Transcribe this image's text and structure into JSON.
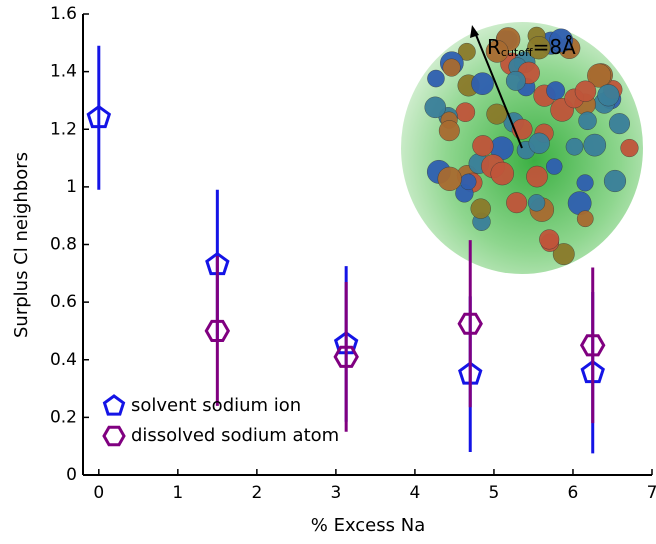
{
  "chart_data": {
    "type": "scatter",
    "xlabel": "% Excess Na",
    "ylabel": "Surplus Cl neighbors",
    "xlim": [
      -0.2,
      7
    ],
    "ylim": [
      0,
      1.6
    ],
    "xticks": [
      0,
      1,
      2,
      3,
      4,
      5,
      6,
      7
    ],
    "yticks": [
      0,
      0.2,
      0.4,
      0.6,
      0.8,
      1,
      1.2,
      1.4,
      1.6
    ],
    "legend": "lower left",
    "annotation": {
      "base": "R",
      "sub": "cutoff",
      "rest": "=8Å"
    },
    "series": [
      {
        "name": "solvent sodium ion",
        "color": "#1414e6",
        "marker": "pentagon",
        "x": [
          0,
          1.5,
          3.13,
          4.7,
          6.25
        ],
        "values": [
          1.24,
          0.73,
          0.455,
          0.35,
          0.355
        ],
        "errors": [
          0.25,
          0.26,
          0.27,
          0.27,
          0.28
        ]
      },
      {
        "name": "dissolved sodium atom",
        "color": "#800080",
        "marker": "hexagon",
        "x": [
          1.5,
          3.13,
          4.7,
          6.25
        ],
        "values": [
          0.5,
          0.41,
          0.525,
          0.45
        ],
        "errors": [
          0.26,
          0.26,
          0.29,
          0.27
        ]
      }
    ]
  }
}
